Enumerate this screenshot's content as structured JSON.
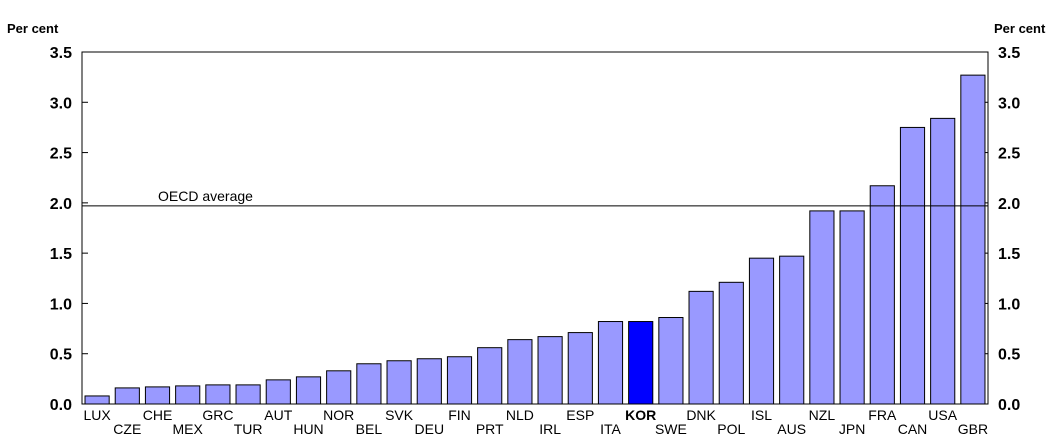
{
  "chart_data": {
    "type": "bar",
    "y_unit_left": "Per cent",
    "y_unit_right": "Per cent",
    "ylim": [
      0,
      3.5
    ],
    "yticks": [
      "0.0",
      "0.5",
      "1.0",
      "1.5",
      "2.0",
      "2.5",
      "3.0",
      "3.5"
    ],
    "grid": false,
    "categories": [
      "LUX",
      "CZE",
      "CHE",
      "MEX",
      "GRC",
      "TUR",
      "AUT",
      "HUN",
      "NOR",
      "BEL",
      "SVK",
      "DEU",
      "FIN",
      "PRT",
      "NLD",
      "IRL",
      "ESP",
      "ITA",
      "KOR",
      "SWE",
      "DNK",
      "POL",
      "ISL",
      "AUS",
      "NZL",
      "JPN",
      "FRA",
      "CAN",
      "USA",
      "GBR"
    ],
    "values": [
      0.08,
      0.16,
      0.17,
      0.18,
      0.19,
      0.19,
      0.24,
      0.27,
      0.33,
      0.4,
      0.43,
      0.45,
      0.47,
      0.56,
      0.64,
      0.67,
      0.71,
      0.82,
      0.82,
      0.86,
      1.12,
      1.21,
      1.45,
      1.47,
      1.92,
      1.92,
      2.17,
      2.75,
      2.84,
      3.27
    ],
    "highlight_category": "KOR",
    "reference_line": {
      "label": "OECD average",
      "value": 1.97
    },
    "colors": {
      "bar": "#9999ff",
      "highlight": "#0000ff",
      "outline": "#000000"
    }
  }
}
